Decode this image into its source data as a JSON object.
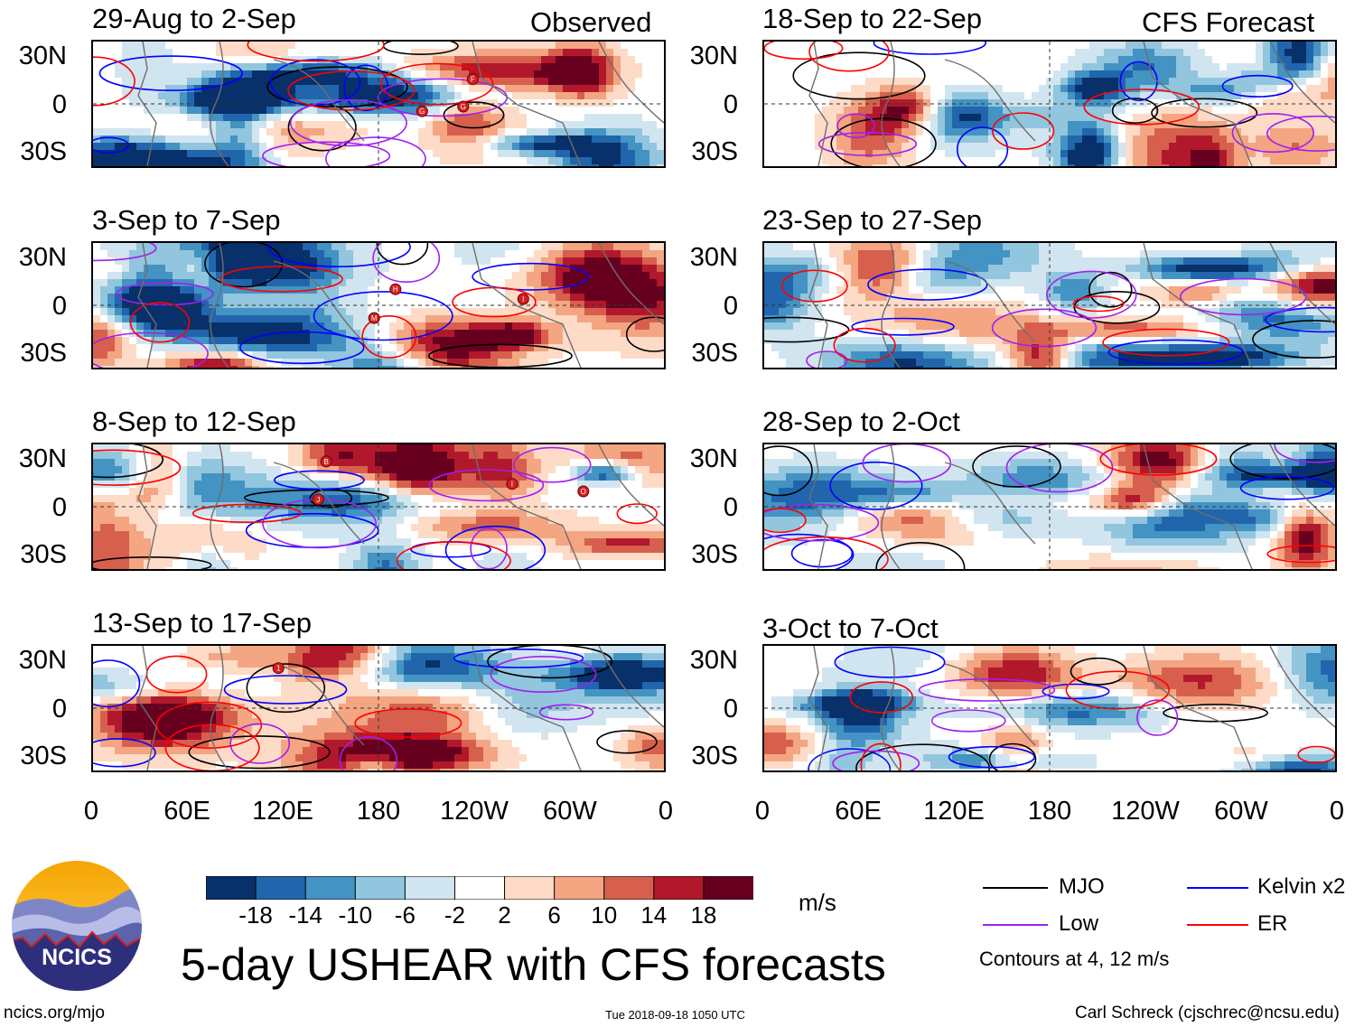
{
  "figure": {
    "title": "5-day USHEAR with CFS forecasts",
    "logo_text": "NCICS",
    "site": "ncics.org/mjo",
    "timestamp": "Tue 2018-09-18 1050 UTC",
    "author": "Carl Schreck (cjschrec@ncsu.edu)"
  },
  "columns": {
    "observed_label": "Observed",
    "forecast_label": "CFS Forecast"
  },
  "chart_data": {
    "type": "heatmap",
    "variable": "USHEAR",
    "units": "m/s",
    "y_ticks": [
      "30N",
      "0",
      "30S"
    ],
    "x_ticks": [
      "0",
      "60E",
      "120E",
      "180",
      "120W",
      "60W",
      "0"
    ],
    "lon_range": [
      0,
      360
    ],
    "lat_range": [
      -40,
      40
    ],
    "panels": [
      {
        "title": "29-Aug to 2-Sep",
        "column": "observed"
      },
      {
        "title": "3-Sep to 7-Sep",
        "column": "observed"
      },
      {
        "title": "8-Sep to 12-Sep",
        "column": "observed"
      },
      {
        "title": "13-Sep to 17-Sep",
        "column": "observed"
      },
      {
        "title": "18-Sep to 22-Sep",
        "column": "forecast"
      },
      {
        "title": "23-Sep to 27-Sep",
        "column": "forecast"
      },
      {
        "title": "28-Sep to 2-Oct",
        "column": "forecast"
      },
      {
        "title": "3-Oct to 7-Oct",
        "column": "forecast"
      }
    ],
    "colorbar": {
      "ticks": [
        "-18",
        "-14",
        "-10",
        "-6",
        "-2",
        "2",
        "6",
        "10",
        "14",
        "18"
      ],
      "colors": [
        "#08306b",
        "#2166ac",
        "#4393c3",
        "#92c5de",
        "#d1e5f0",
        "#ffffff",
        "#fddbc7",
        "#f4a582",
        "#d6604d",
        "#b2182b",
        "#67001f"
      ],
      "units_label": "m/s"
    },
    "legend": [
      {
        "label": "MJO",
        "color": "#000000"
      },
      {
        "label": "Kelvin x2",
        "color": "#0000ff"
      },
      {
        "label": "Low",
        "color": "#a020f0"
      },
      {
        "label": "ER",
        "color": "#ff0000"
      }
    ],
    "contour_note": "Contours at 4, 12 m/s",
    "storm_markers": [
      {
        "panel": 0,
        "letters": [
          "G",
          "G",
          "F"
        ]
      },
      {
        "panel": 1,
        "letters": [
          "M",
          "I",
          "H"
        ]
      },
      {
        "panel": 2,
        "letters": [
          "B",
          "O",
          "J",
          "I"
        ]
      },
      {
        "panel": 3,
        "letters": [
          "1"
        ]
      }
    ]
  }
}
